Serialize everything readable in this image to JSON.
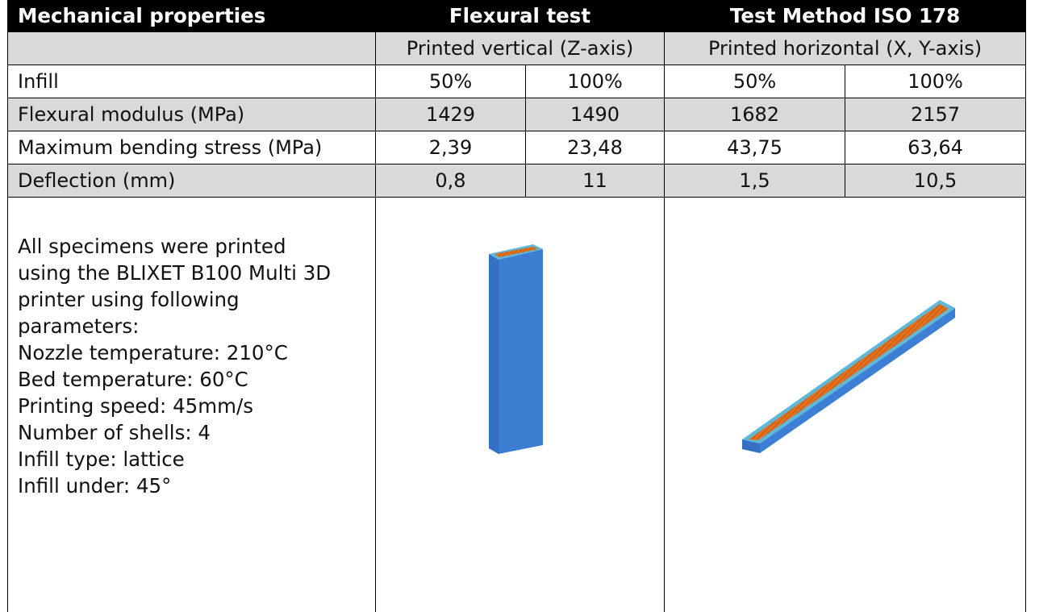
{
  "header": {
    "col1": "Mechanical properties",
    "col2": "Flexural test",
    "col3": "Test Method ISO 178"
  },
  "subheader": {
    "vertical": "Printed vertical (Z-axis)",
    "horizontal": "Printed horizontal (X, Y-axis)"
  },
  "rows": [
    {
      "label": "Infill",
      "values": [
        "50%",
        "100%",
        "50%",
        "100%"
      ]
    },
    {
      "label": "Flexural modulus (MPa)",
      "values": [
        "1429",
        "1490",
        "1682",
        "2157"
      ]
    },
    {
      "label": "Maximum bending stress (MPa)",
      "values": [
        "2,39",
        "23,48",
        "43,75",
        "63,64"
      ]
    },
    {
      "label": "Deflection (mm)",
      "values": [
        "0,8",
        "11",
        "1,5",
        "10,5"
      ]
    }
  ],
  "notes": [
    "All specimens were printed",
    "using the BLIXET B100 Multi 3D",
    "printer using following",
    "parameters:",
    "Nozzle temperature: 210°C",
    "Bed temperature: 60°C",
    "Printing speed: 45mm/s",
    "Number of shells: 4",
    "Infill type: lattice",
    "Infill under: 45°"
  ],
  "colors": {
    "header_bg": "#000000",
    "shade": "#d9d9d9",
    "specimen_blue": "#3f7fd6",
    "infill_orange": "#e0701f"
  }
}
